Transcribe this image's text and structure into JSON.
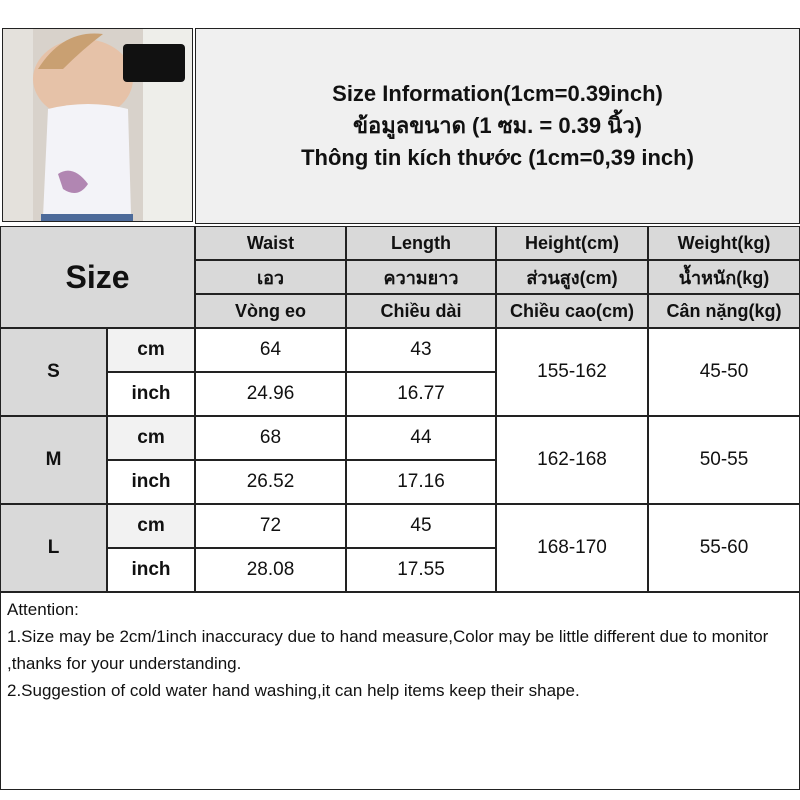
{
  "title": {
    "line1": "Size Information(1cm=0.39inch)",
    "line2": "ข้อมูลขนาด (1 ซม. = 0.39 นิ้ว)",
    "line3": "Thông tin kích thước (1cm=0,39 inch)"
  },
  "table": {
    "size_label": "Size",
    "columns": [
      {
        "en": "Waist",
        "th": "เอว",
        "vi": "Vòng eo"
      },
      {
        "en": "Length",
        "th": "ความยาว",
        "vi": "Chiều dài"
      },
      {
        "en": "Height(cm)",
        "th": "ส่วนสูง(cm)",
        "vi": "Chiều cao(cm)"
      },
      {
        "en": "Weight(kg)",
        "th": "น้ำหนัก(kg)",
        "vi": "Cân nặng(kg)"
      }
    ],
    "units": {
      "cm": "cm",
      "inch": "inch"
    },
    "rows": [
      {
        "size": "S",
        "cm": {
          "waist": "64",
          "length": "43"
        },
        "inch": {
          "waist": "24.96",
          "length": "16.77"
        },
        "height": "155-162",
        "weight": "45-50"
      },
      {
        "size": "M",
        "cm": {
          "waist": "68",
          "length": "44"
        },
        "inch": {
          "waist": "26.52",
          "length": "17.16"
        },
        "height": "162-168",
        "weight": "50-55"
      },
      {
        "size": "L",
        "cm": {
          "waist": "72",
          "length": "45"
        },
        "inch": {
          "waist": "28.08",
          "length": "17.55"
        },
        "height": "168-170",
        "weight": "55-60"
      }
    ]
  },
  "attention": {
    "heading": "Attention:",
    "note1": "1.Size may be 2cm/1inch inaccuracy due to hand measure,Color may be little different due to monitor ,thanks for your understanding.",
    "note2": "2.Suggestion of cold water hand washing,it can help items keep their shape."
  },
  "colors": {
    "header_bg": "#d9d9d9",
    "cm_row_bg": "#f2f2f2",
    "border": "#222222"
  }
}
